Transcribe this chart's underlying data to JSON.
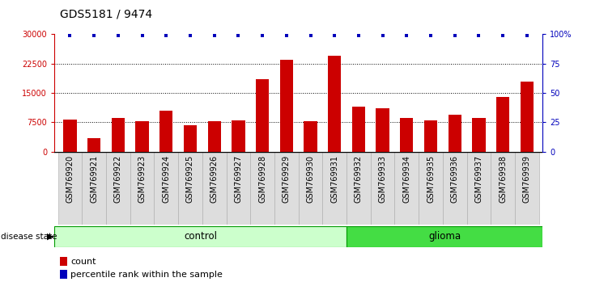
{
  "title": "GDS5181 / 9474",
  "samples": [
    "GSM769920",
    "GSM769921",
    "GSM769922",
    "GSM769923",
    "GSM769924",
    "GSM769925",
    "GSM769926",
    "GSM769927",
    "GSM769928",
    "GSM769929",
    "GSM769930",
    "GSM769931",
    "GSM769932",
    "GSM769933",
    "GSM769934",
    "GSM769935",
    "GSM769936",
    "GSM769937",
    "GSM769938",
    "GSM769939"
  ],
  "counts": [
    8200,
    3500,
    8600,
    7800,
    10500,
    6800,
    7800,
    7900,
    18500,
    23500,
    7800,
    24500,
    11500,
    11000,
    8500,
    8000,
    9500,
    8500,
    14000,
    18000
  ],
  "percentile_values": [
    99,
    99,
    99,
    99,
    99,
    99,
    99,
    99,
    99,
    99,
    99,
    99,
    99,
    99,
    99,
    99,
    99,
    99,
    99,
    99
  ],
  "control_count": 12,
  "glioma_count": 8,
  "bar_color": "#cc0000",
  "dot_color": "#0000bb",
  "control_bg": "#ccffcc",
  "glioma_bg": "#44dd44",
  "ylim_left": [
    0,
    30000
  ],
  "ylim_right": [
    0,
    100
  ],
  "yticks_left": [
    0,
    7500,
    15000,
    22500,
    30000
  ],
  "yticks_right": [
    0,
    25,
    50,
    75,
    100
  ],
  "background_color": "#ffffff",
  "title_fontsize": 10,
  "tick_fontsize": 7,
  "legend_fontsize": 8
}
